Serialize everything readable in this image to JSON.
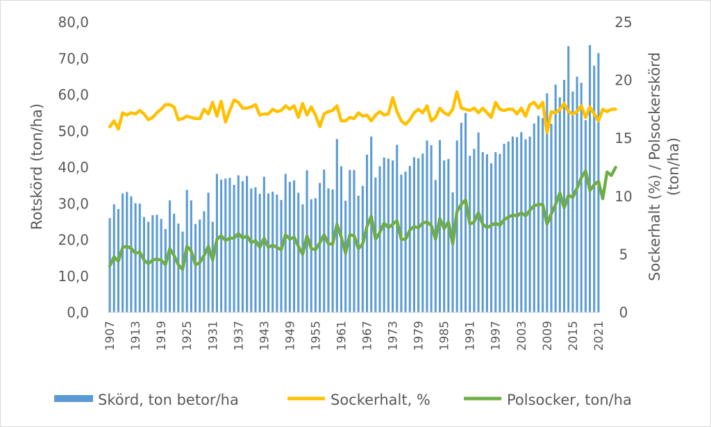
{
  "chart_data": {
    "type": "bar+line",
    "title": "",
    "x_start_year": 1907,
    "x_end_year": 2021,
    "x_tick_labels": [
      "1907",
      "1913",
      "1919",
      "1925",
      "1931",
      "1937",
      "1943",
      "1949",
      "1955",
      "1961",
      "1967",
      "1973",
      "1979",
      "1985",
      "1991",
      "1997",
      "2003",
      "2009",
      "2015",
      "2021"
    ],
    "y_left": {
      "label": "Rotskörd (ton/ha)",
      "ylim": [
        0,
        80
      ],
      "ticks": [
        "0,0",
        "10,0",
        "20,0",
        "30,0",
        "40,0",
        "50,0",
        "60,0",
        "70,0",
        "80,0"
      ]
    },
    "y_right": {
      "label_line1": "Sockerhalt (%) / Polsockerskörd",
      "label_line2": "(ton/ha)",
      "ylim": [
        0,
        25
      ],
      "ticks": [
        "0",
        "5",
        "10",
        "15",
        "20",
        "25"
      ]
    },
    "grid": false,
    "legend_position": "bottom",
    "series": [
      {
        "name": "Skörd, ton betor/ha",
        "kind": "bar",
        "axis": "left",
        "color": "#5b9bd5",
        "values": [
          26.0,
          29.8,
          28.5,
          32.8,
          33.2,
          32.0,
          30.1,
          30.0,
          26.3,
          25.0,
          26.8,
          26.9,
          25.8,
          23.0,
          30.9,
          27.2,
          24.5,
          22.3,
          33.8,
          30.9,
          24.4,
          25.6,
          27.9,
          33.0,
          25.0,
          38.2,
          36.6,
          36.9,
          37.1,
          35.2,
          37.8,
          36.2,
          37.6,
          34.2,
          34.5,
          32.7,
          37.4,
          32.8,
          33.3,
          32.5,
          31.0,
          38.2,
          36.0,
          36.4,
          33.0,
          29.8,
          39.2,
          31.2,
          31.5,
          35.7,
          39.4,
          34.2,
          33.9,
          47.8,
          40.3,
          30.8,
          39.3,
          39.3,
          32.2,
          34.9,
          43.5,
          48.5,
          37.2,
          40.3,
          42.7,
          42.4,
          41.9,
          46.2,
          38.0,
          38.8,
          40.4,
          42.8,
          42.5,
          43.8,
          47.4,
          46.1,
          36.5,
          47.5,
          41.9,
          42.3,
          33.1,
          47.4,
          52.3,
          55.0,
          43.2,
          45.1,
          49.6,
          44.2,
          43.6,
          41.1,
          44.2,
          43.7,
          46.5,
          47.1,
          48.5,
          48.3,
          49.7,
          47.7,
          48.5,
          52.1,
          54.2,
          53.6,
          60.4,
          52.0,
          62.8,
          59.3,
          64.1,
          73.4,
          60.9,
          65.0,
          63.3,
          53.0,
          73.7,
          68.0,
          71.5
        ]
      },
      {
        "name": "Sockerhalt, %",
        "kind": "line",
        "axis": "right",
        "color": "#ffc000",
        "values": [
          16.0,
          16.5,
          15.8,
          17.2,
          17.0,
          17.2,
          17.1,
          17.4,
          17.1,
          16.6,
          16.8,
          17.2,
          17.5,
          17.9,
          17.9,
          17.7,
          16.6,
          16.7,
          16.9,
          16.8,
          16.7,
          16.7,
          17.5,
          17.1,
          18.1,
          16.9,
          18.2,
          16.4,
          17.4,
          18.3,
          18.1,
          17.6,
          17.6,
          17.7,
          17.9,
          17.0,
          17.1,
          17.1,
          17.5,
          17.3,
          17.4,
          17.8,
          17.5,
          17.8,
          16.8,
          18.0,
          17.0,
          17.7,
          17.0,
          16.0,
          17.1,
          17.3,
          17.4,
          17.8,
          16.5,
          16.5,
          16.8,
          16.7,
          17.2,
          16.9,
          17.0,
          16.5,
          17.0,
          17.3,
          17.0,
          17.1,
          18.5,
          17.3,
          16.5,
          16.2,
          16.6,
          17.2,
          17.5,
          17.2,
          17.8,
          16.5,
          16.8,
          17.6,
          17.2,
          17.0,
          17.5,
          19.0,
          17.6,
          17.5,
          17.4,
          17.6,
          17.2,
          17.6,
          17.2,
          16.8,
          18.1,
          17.5,
          17.4,
          17.5,
          17.5,
          17.1,
          17.6,
          16.9,
          17.9,
          18.1,
          17.6,
          18.1,
          15.5,
          17.3,
          17.2,
          17.5,
          18.0,
          17.3,
          17.1,
          17.3,
          17.8,
          16.8,
          17.7,
          17.1,
          16.5,
          17.5,
          17.3,
          17.5,
          17.5
        ]
      },
      {
        "name": "Polsocker, ton/ha",
        "kind": "line",
        "axis": "right",
        "color": "#70ad47",
        "values": [
          4.0,
          4.8,
          4.4,
          5.6,
          5.7,
          5.5,
          5.1,
          5.2,
          4.5,
          4.2,
          4.5,
          4.6,
          4.5,
          4.1,
          5.5,
          4.9,
          4.1,
          3.7,
          5.7,
          5.3,
          4.1,
          4.3,
          4.9,
          5.7,
          4.5,
          6.3,
          6.6,
          6.2,
          6.4,
          6.4,
          6.8,
          6.4,
          6.6,
          6.0,
          6.2,
          5.6,
          6.4,
          5.6,
          5.8,
          5.6,
          5.4,
          6.7,
          6.3,
          6.5,
          5.7,
          5.0,
          6.6,
          5.5,
          5.4,
          6.0,
          6.7,
          5.9,
          5.9,
          7.6,
          6.5,
          5.1,
          6.7,
          6.6,
          5.5,
          5.9,
          7.4,
          8.3,
          6.3,
          6.9,
          7.7,
          7.3,
          7.6,
          7.9,
          6.3,
          6.3,
          7.1,
          7.4,
          7.3,
          7.7,
          7.8,
          7.5,
          6.3,
          8.1,
          7.2,
          7.8,
          5.9,
          8.7,
          9.3,
          9.7,
          7.6,
          7.8,
          8.6,
          7.6,
          7.3,
          7.5,
          7.7,
          7.5,
          8.0,
          8.2,
          8.4,
          8.3,
          8.6,
          8.3,
          8.8,
          9.2,
          9.3,
          9.3,
          7.6,
          8.5,
          9.3,
          10.3,
          9.0,
          10.1,
          9.9,
          10.7,
          11.6,
          12.2,
          10.5,
          11.0,
          11.3,
          9.8,
          12.1,
          11.8,
          12.5
        ]
      }
    ]
  }
}
